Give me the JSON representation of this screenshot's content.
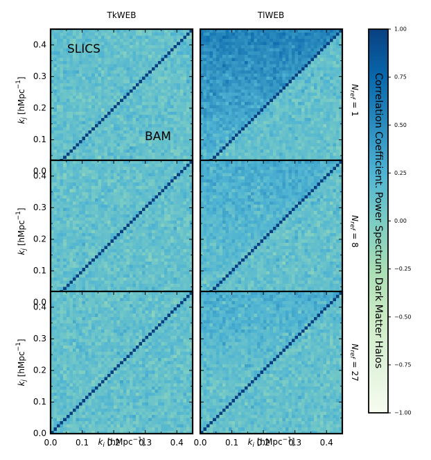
{
  "chart_data": {
    "type": "heatmap",
    "layout": {
      "rows": 3,
      "cols": 2,
      "shared_axes": true
    },
    "column_titles": [
      "TkWEB",
      "TlWEB"
    ],
    "row_labels": [
      "N_ref = 1",
      "N_ref = 8",
      "N_ref = 27"
    ],
    "row_label_parts": [
      {
        "main": "N",
        "sub": "ref",
        "rest": " = 1"
      },
      {
        "main": "N",
        "sub": "ref",
        "rest": " = 8"
      },
      {
        "main": "N",
        "sub": "ref",
        "rest": " = 27"
      }
    ],
    "xlabel": "k_i [hMpc^-1]",
    "ylabel": "k_j [hMpc^-1]",
    "xlabel_parts": {
      "main": "k",
      "sub": "i",
      "unit": " [hMpc",
      "sup": "−1",
      "close": "]"
    },
    "ylabel_parts": {
      "main": "k",
      "sub": "j",
      "unit": " [hMpc",
      "sup": "−1",
      "close": "]"
    },
    "xlim": [
      0.0,
      0.45
    ],
    "ylim": [
      0.0,
      0.45
    ],
    "xticks": [
      "0.0",
      "0.1",
      "0.2",
      "0.3",
      "0.4"
    ],
    "yticks": [
      "0.0",
      "0.1",
      "0.2",
      "0.3",
      "0.4"
    ],
    "grid_bins": 45,
    "diagonal_value": 1.0,
    "annotations": [
      {
        "panel": "top-left",
        "text": "SLICS",
        "position": "upper-left"
      },
      {
        "panel": "top-left",
        "text": "BAM",
        "position": "lower-right"
      }
    ],
    "lower_triangle_label": "SLICS",
    "upper_triangle_label": "BAM",
    "panels": [
      {
        "row": 0,
        "col": 0,
        "column": "TkWEB",
        "n_ref": 1,
        "off_diagonal_mean": 0.12,
        "upper_triangle_mean": 0.12,
        "upper_high_k_mean": 0.12
      },
      {
        "row": 0,
        "col": 1,
        "column": "TlWEB",
        "n_ref": 1,
        "off_diagonal_mean": 0.12,
        "upper_triangle_mean": 0.38,
        "upper_high_k_mean": 0.62
      },
      {
        "row": 1,
        "col": 0,
        "column": "TkWEB",
        "n_ref": 8,
        "off_diagonal_mean": 0.12,
        "upper_triangle_mean": 0.12,
        "upper_high_k_mean": 0.12
      },
      {
        "row": 1,
        "col": 1,
        "column": "TlWEB",
        "n_ref": 8,
        "off_diagonal_mean": 0.12,
        "upper_triangle_mean": 0.2,
        "upper_high_k_mean": 0.3
      },
      {
        "row": 2,
        "col": 0,
        "column": "TkWEB",
        "n_ref": 27,
        "off_diagonal_mean": 0.12,
        "upper_triangle_mean": 0.12,
        "upper_high_k_mean": 0.12
      },
      {
        "row": 2,
        "col": 1,
        "column": "TlWEB",
        "n_ref": 27,
        "off_diagonal_mean": 0.12,
        "upper_triangle_mean": 0.16,
        "upper_high_k_mean": 0.28
      }
    ],
    "colorbar": {
      "label": "Correlation Coefficient. Power Spectrum Dark Matter Halos",
      "range": [
        -1.0,
        1.0
      ],
      "ticks": [
        "1.00",
        "0.75",
        "0.50",
        "0.25",
        "0.00",
        "−0.25",
        "−0.50",
        "−0.75",
        "−1.00"
      ],
      "tick_values": [
        1.0,
        0.75,
        0.5,
        0.25,
        0.0,
        -0.25,
        -0.5,
        -0.75,
        -1.0
      ],
      "colormap": "GnBu",
      "colormap_stops": [
        "#f7fcf0",
        "#e0f3db",
        "#ccebc5",
        "#a8ddb5",
        "#7bccc4",
        "#4eb3d3",
        "#2b8cbe",
        "#0868ac",
        "#084081"
      ]
    }
  }
}
